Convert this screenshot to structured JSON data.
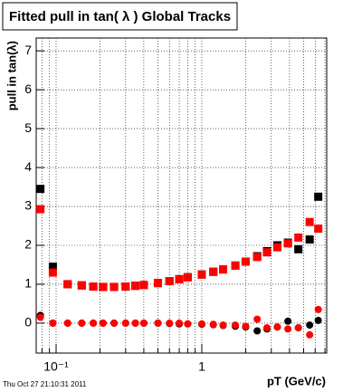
{
  "chart_data": {
    "type": "scatter",
    "title": "Fitted pull in tan( λ )  Global Tracks",
    "x_label": "pT (GeV/c)",
    "y_label": "pull in tan(λ)",
    "footer": "Thu Oct 27 21:10:31 2011",
    "x": [
      0.078,
      0.095,
      0.12,
      0.15,
      0.18,
      0.21,
      0.25,
      0.3,
      0.35,
      0.4,
      0.5,
      0.6,
      0.7,
      0.8,
      1.0,
      1.2,
      1.4,
      1.7,
      2.0,
      2.4,
      2.8,
      3.3,
      3.9,
      4.6,
      5.5,
      6.3
    ],
    "series": [
      {
        "color": "#000000",
        "marker": "square",
        "values": [
          3.45,
          1.45,
          1.0,
          0.97,
          0.94,
          0.93,
          0.93,
          0.94,
          0.96,
          0.98,
          1.03,
          1.08,
          1.13,
          1.18,
          1.25,
          1.32,
          1.38,
          1.48,
          1.58,
          1.72,
          1.85,
          2.0,
          2.07,
          1.9,
          2.15,
          3.25
        ]
      },
      {
        "color": "#ff0000",
        "marker": "square",
        "values": [
          2.93,
          1.3,
          1.0,
          0.97,
          0.94,
          0.93,
          0.93,
          0.94,
          0.96,
          0.98,
          1.03,
          1.08,
          1.13,
          1.18,
          1.25,
          1.32,
          1.38,
          1.48,
          1.58,
          1.7,
          1.82,
          1.95,
          2.05,
          2.2,
          2.6,
          2.43
        ]
      },
      {
        "color": "#000000",
        "marker": "circle",
        "values": [
          0.2,
          0.0,
          0.0,
          0.0,
          0.0,
          0.0,
          0.0,
          0.0,
          0.0,
          0.0,
          0.0,
          -0.01,
          -0.02,
          -0.02,
          -0.03,
          -0.04,
          -0.06,
          -0.08,
          -0.1,
          -0.2,
          -0.15,
          -0.1,
          0.05,
          -0.12,
          -0.05,
          0.07
        ]
      },
      {
        "color": "#ff0000",
        "marker": "circle",
        "values": [
          0.15,
          0.0,
          0.0,
          0.0,
          0.0,
          0.0,
          0.0,
          0.0,
          0.0,
          0.0,
          0.0,
          0.0,
          0.0,
          -0.02,
          -0.02,
          -0.03,
          -0.05,
          -0.05,
          -0.08,
          0.1,
          -0.12,
          -0.1,
          -0.15,
          -0.12,
          -0.3,
          0.35
        ]
      }
    ],
    "xlog": true,
    "xlim": [
      0.073,
      7.2
    ],
    "xticks": [
      {
        "value": 0.1,
        "label": "10⁻¹"
      },
      1
    ],
    "minor_xticks": [
      0.08,
      0.09,
      0.2,
      0.3,
      0.4,
      0.5,
      0.6,
      0.7,
      0.8,
      0.9,
      2,
      3,
      4,
      5,
      6,
      7
    ],
    "ylim": [
      -0.77,
      7.33
    ],
    "yticks": [
      0,
      1,
      2,
      3,
      4,
      5,
      6,
      7
    ],
    "grid": true
  }
}
